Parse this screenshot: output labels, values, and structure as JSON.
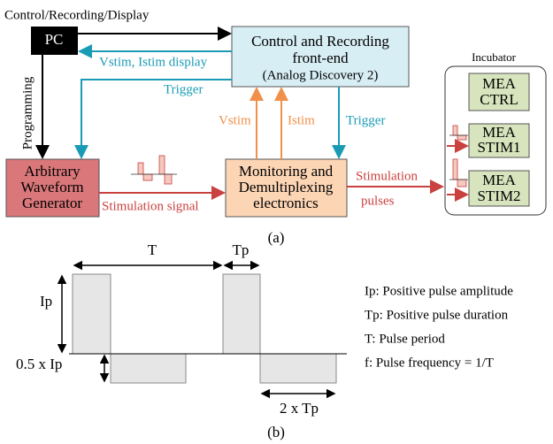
{
  "figure_a": {
    "top_label": "Control/Recording/Display",
    "pc": "PC",
    "frontend": {
      "lines": [
        "Control and Recording",
        "front-end",
        "(Analog Discovery 2)"
      ]
    },
    "vstim_istim_display": "Vstim, Istim display",
    "trigger_left": "Trigger",
    "programming": "Programming",
    "awg": {
      "lines": [
        "Arbitrary",
        "Waveform",
        "Generator"
      ]
    },
    "stimulation_signal": "Stimulation signal",
    "monitoring": {
      "lines": [
        "Monitoring and",
        "Demultiplexing",
        "electronics"
      ]
    },
    "vstim": "Vstim",
    "istim": "Istim",
    "trigger_right": "Trigger",
    "stimulation_pulses": [
      "Stimulation",
      "pulses"
    ],
    "incubator": "Incubator",
    "mea": [
      {
        "lines": [
          "MEA",
          "CTRL"
        ]
      },
      {
        "lines": [
          "MEA",
          "STIM1"
        ]
      },
      {
        "lines": [
          "MEA",
          "STIM2"
        ]
      }
    ],
    "caption": "(a)"
  },
  "figure_b": {
    "t": "T",
    "tp": "Tp",
    "ip": "Ip",
    "half_ip": "0.5 x Ip",
    "two_tp": "2 x Tp",
    "legend": [
      "Ip: Positive pulse amplitude",
      "Tp: Positive pulse duration",
      "T: Pulse period",
      "f: Pulse frequency = 1/T"
    ],
    "caption": "(b)"
  }
}
